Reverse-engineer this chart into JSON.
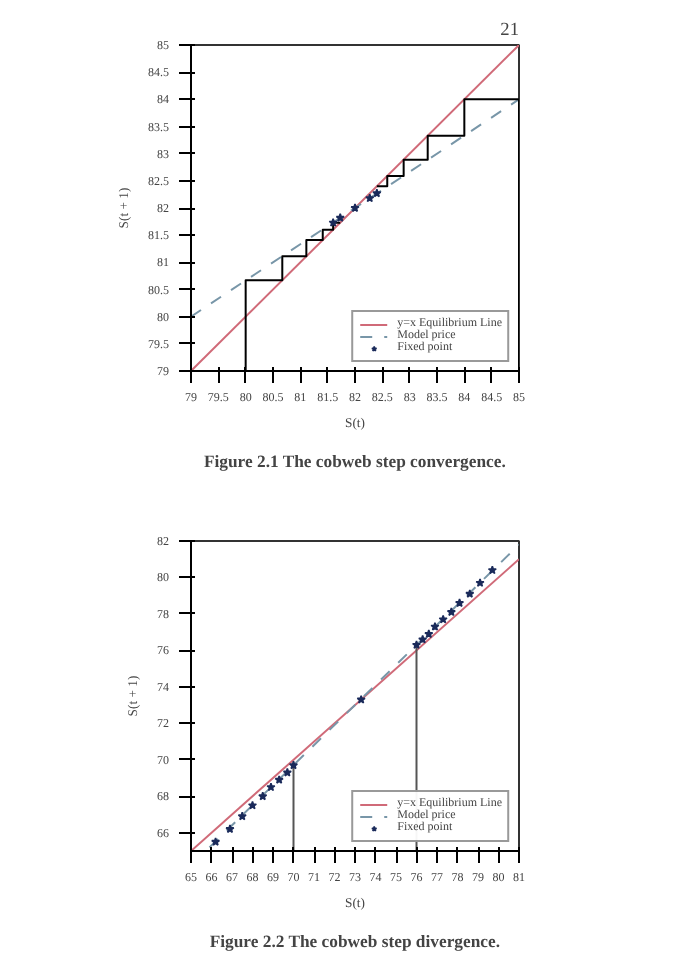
{
  "chart_data": [
    {
      "type": "line",
      "xlabel": "S(t)",
      "ylabel": "S(t + 1)",
      "annotations": [
        "21",
        "Figure 2.1 The cobweb step convergence."
      ],
      "xlim": [
        79,
        85
      ],
      "ylim": [
        79,
        85
      ],
      "xticks": [
        79,
        79.5,
        80,
        80.5,
        81,
        81.5,
        82,
        82.5,
        83,
        83.5,
        84,
        84.5,
        85
      ],
      "yticks": [
        79,
        79.5,
        80,
        80.5,
        81,
        81.5,
        82,
        82.5,
        83,
        83.5,
        84,
        84.5,
        85
      ],
      "grid": false,
      "legend": "bottom right",
      "series": [
        {
          "name": "y=x Equilibrium Line",
          "color": "#d06a78",
          "line_style": "solid",
          "x": [
            79,
            85
          ],
          "values": [
            79,
            85
          ]
        },
        {
          "name": "Model price",
          "color": "#7896a8",
          "line_style": "dashed",
          "x": [
            79,
            85
          ],
          "values": [
            80,
            84
          ]
        },
        {
          "color": "#000000",
          "line_style": "solid",
          "x": [
            80,
            80,
            80.67,
            80.67,
            81.11,
            81.11,
            81.41,
            81.41,
            81.6,
            81.6,
            81.73
          ],
          "values": [
            79,
            80.67,
            80.67,
            81.11,
            81.11,
            81.41,
            81.41,
            81.6,
            81.6,
            81.73,
            81.73
          ]
        },
        {
          "color": "#000000",
          "line_style": "solid",
          "x": [
            85,
            85,
            84,
            84,
            83.33,
            83.33,
            82.89,
            82.89,
            82.59,
            82.59,
            82.4
          ],
          "values": [
            79,
            84,
            84,
            83.33,
            83.33,
            82.89,
            82.89,
            82.59,
            82.59,
            82.4,
            82.4
          ]
        },
        {
          "name": "Fixed point",
          "type": "scatter",
          "marker": "star",
          "color": "#1a2a5a",
          "x": [
            81.6,
            81.73,
            82,
            82.27,
            82.4
          ],
          "values": [
            81.73,
            81.82,
            82,
            82.18,
            82.27
          ]
        }
      ]
    },
    {
      "type": "line",
      "xlabel": "S(t)",
      "ylabel": "S(t + 1)",
      "annotations": [
        "Figure 2.2 The cobweb step divergence."
      ],
      "xlim": [
        65,
        81
      ],
      "ylim": [
        65,
        82
      ],
      "xticks": [
        65,
        66,
        67,
        68,
        69,
        70,
        71,
        72,
        73,
        74,
        75,
        76,
        77,
        78,
        79,
        80,
        81
      ],
      "yticks": [
        66,
        68,
        70,
        72,
        74,
        76,
        78,
        80,
        82
      ],
      "grid": false,
      "legend": "bottom right",
      "series": [
        {
          "name": "y=x Equilibrium Line",
          "color": "#d06a78",
          "line_style": "solid",
          "x": [
            65,
            81
          ],
          "values": [
            65,
            81
          ]
        },
        {
          "name": "Model price",
          "color": "#7896a8",
          "line_style": "dashed",
          "x": [
            65.9,
            81
          ],
          "values": [
            65.2,
            81.8
          ]
        },
        {
          "color": "#555555",
          "line_style": "solid",
          "x": [
            70,
            70
          ],
          "values": [
            65,
            69.7
          ]
        },
        {
          "color": "#555555",
          "line_style": "solid",
          "x": [
            76,
            76
          ],
          "values": [
            65,
            76.3
          ]
        },
        {
          "name": "Fixed point",
          "type": "scatter",
          "marker": "star",
          "color": "#1a2a5a",
          "x": [
            66.2,
            66.9,
            67.5,
            68.0,
            68.5,
            68.9,
            69.3,
            69.7,
            70,
            73.3,
            76,
            76.3,
            76.6,
            76.9,
            77.3,
            77.7,
            78.1,
            78.6,
            79.1,
            79.7
          ],
          "values": [
            65.5,
            66.2,
            66.9,
            67.5,
            68.0,
            68.5,
            68.9,
            69.3,
            69.7,
            73.3,
            76.3,
            76.6,
            76.9,
            77.3,
            77.7,
            78.1,
            78.6,
            79.1,
            79.7,
            80.4
          ]
        }
      ]
    }
  ]
}
